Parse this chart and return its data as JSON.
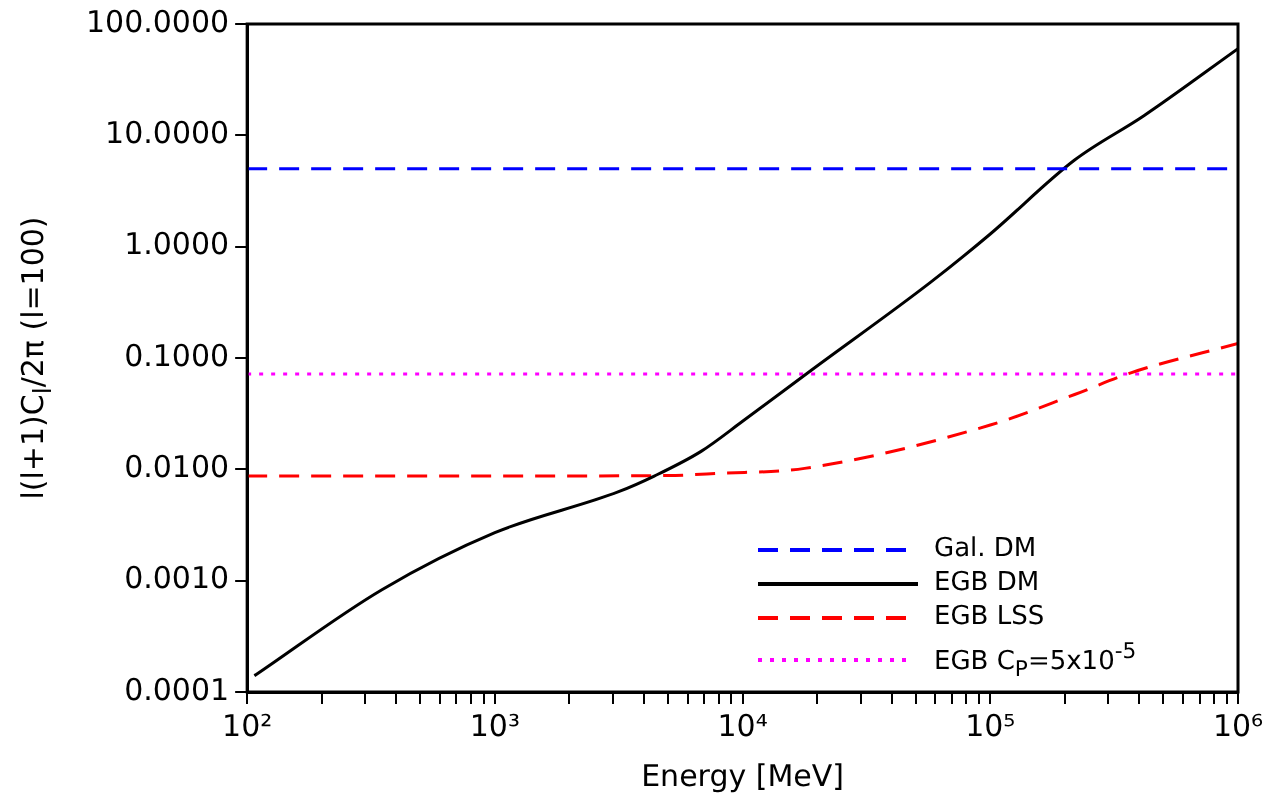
{
  "chart_data": {
    "type": "line",
    "xlabel": "Energy [MeV]",
    "ylabel": "l(l+1)C$_{l}$/2π  (l=100)",
    "log": "xy",
    "grid": false,
    "legend": "bottom right",
    "marker": "none",
    "xlim": [
      100,
      1000000
    ],
    "ylim": [
      0.0001,
      100
    ],
    "xticks": [
      {
        "value": 100,
        "label": "10²"
      },
      {
        "value": 200,
        "label": null
      },
      {
        "value": 300,
        "label": null
      },
      {
        "value": 400,
        "label": null
      },
      {
        "value": 500,
        "label": null
      },
      {
        "value": 600,
        "label": null
      },
      {
        "value": 700,
        "label": null
      },
      {
        "value": 800,
        "label": null
      },
      {
        "value": 900,
        "label": null
      },
      {
        "value": 1000,
        "label": "10³"
      },
      {
        "value": 2000,
        "label": null
      },
      {
        "value": 3000,
        "label": null
      },
      {
        "value": 4000,
        "label": null
      },
      {
        "value": 5000,
        "label": null
      },
      {
        "value": 6000,
        "label": null
      },
      {
        "value": 7000,
        "label": null
      },
      {
        "value": 8000,
        "label": null
      },
      {
        "value": 9000,
        "label": null
      },
      {
        "value": 10000,
        "label": "10⁴"
      },
      {
        "value": 20000,
        "label": null
      },
      {
        "value": 30000,
        "label": null
      },
      {
        "value": 40000,
        "label": null
      },
      {
        "value": 50000,
        "label": null
      },
      {
        "value": 60000,
        "label": null
      },
      {
        "value": 70000,
        "label": null
      },
      {
        "value": 80000,
        "label": null
      },
      {
        "value": 90000,
        "label": null
      },
      {
        "value": 100000,
        "label": "10⁵"
      },
      {
        "value": 200000,
        "label": null
      },
      {
        "value": 300000,
        "label": null
      },
      {
        "value": 400000,
        "label": null
      },
      {
        "value": 500000,
        "label": null
      },
      {
        "value": 600000,
        "label": null
      },
      {
        "value": 700000,
        "label": null
      },
      {
        "value": 800000,
        "label": null
      },
      {
        "value": 900000,
        "label": null
      },
      {
        "value": 1000000,
        "label": "10⁶"
      }
    ],
    "yticks": [
      {
        "value": 0.0001,
        "label": "0.0001"
      },
      {
        "value": 0.001,
        "label": "0.0010"
      },
      {
        "value": 0.01,
        "label": "0.0100"
      },
      {
        "value": 0.1,
        "label": "0.1000"
      },
      {
        "value": 1,
        "label": "1.0000"
      },
      {
        "value": 10,
        "label": "10.0000"
      },
      {
        "value": 100,
        "label": "100.0000"
      }
    ],
    "series": [
      {
        "name": "Gal. DM",
        "color": "#0000ff",
        "line_style": "dashed",
        "x": [
          100,
          1000000
        ],
        "values": [
          5,
          5
        ]
      },
      {
        "name": "EGB DM",
        "color": "#000000",
        "line_style": "solid",
        "x": [
          107,
          350,
          1000,
          3160,
          4400,
          6800,
          10000,
          19000,
          57500,
          100000,
          219000,
          417000,
          1000000
        ],
        "values": [
          0.00014,
          0.00083,
          0.0027,
          0.0063,
          0.0087,
          0.0145,
          0.027,
          0.078,
          0.48,
          1.3,
          6,
          15,
          60
        ]
      },
      {
        "name": "EGB LSS",
        "color": "#ff0000",
        "line_style": "dashed",
        "x": [
          100,
          1000,
          5000,
          8000,
          17800,
          100000,
          219000,
          372000,
          1000000
        ],
        "values": [
          0.0087,
          0.0087,
          0.0088,
          0.0092,
          0.0102,
          0.025,
          0.047,
          0.074,
          0.135
        ]
      },
      {
        "name": "EGB C$_{P}$=5x10$^{-5}$",
        "color": "#ff00ff",
        "line_style": "dotted",
        "x": [
          100,
          1000000
        ],
        "values": [
          0.072,
          0.072
        ]
      }
    ]
  }
}
